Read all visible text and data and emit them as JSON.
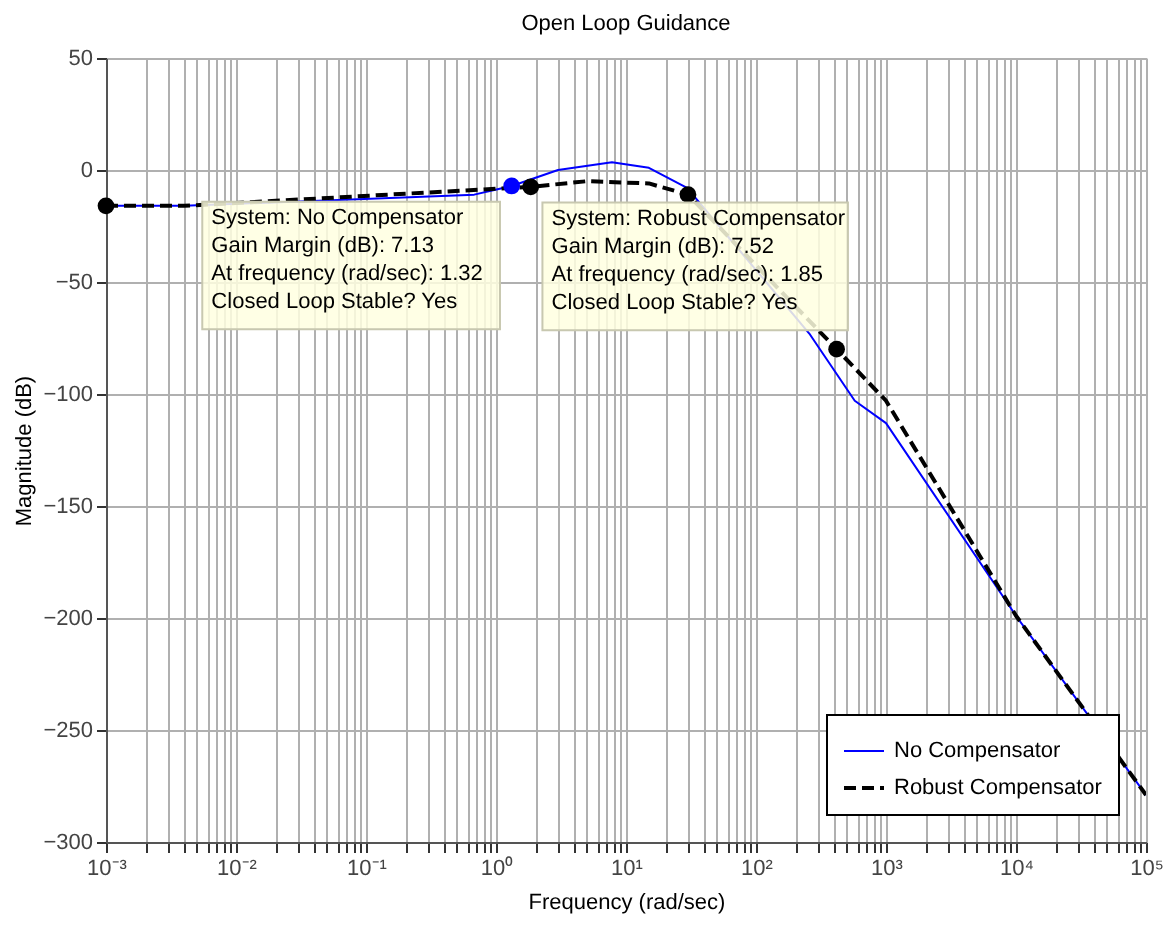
{
  "chart_data": {
    "type": "line",
    "title": "Open Loop Guidance",
    "xlabel": "Frequency  (rad/sec)",
    "ylabel": "Magnitude (dB)",
    "log": "x",
    "grid": true,
    "legend": "bottom right",
    "xlim": [
      0.001,
      100000
    ],
    "ylim": [
      -300,
      50
    ],
    "yticks": [
      -300,
      -250,
      -200,
      -150,
      -100,
      -50,
      0,
      50
    ],
    "xticks": [
      {
        "value": 0.001,
        "label": "10⁻³"
      },
      {
        "value": 0.002,
        "label": null
      },
      {
        "value": 0.003,
        "label": null
      },
      {
        "value": 0.004,
        "label": null
      },
      {
        "value": 0.005,
        "label": null
      },
      {
        "value": 0.006,
        "label": null
      },
      {
        "value": 0.007,
        "label": null
      },
      {
        "value": 0.008,
        "label": null
      },
      {
        "value": 0.009,
        "label": null
      },
      {
        "value": 0.01,
        "label": "10⁻²"
      },
      {
        "value": 0.02,
        "label": null
      },
      {
        "value": 0.03,
        "label": null
      },
      {
        "value": 0.04,
        "label": null
      },
      {
        "value": 0.05,
        "label": null
      },
      {
        "value": 0.06,
        "label": null
      },
      {
        "value": 0.07,
        "label": null
      },
      {
        "value": 0.08,
        "label": null
      },
      {
        "value": 0.09,
        "label": null
      },
      {
        "value": 0.1,
        "label": "10⁻¹"
      },
      {
        "value": 0.2,
        "label": null
      },
      {
        "value": 0.3,
        "label": null
      },
      {
        "value": 0.4,
        "label": null
      },
      {
        "value": 0.5,
        "label": null
      },
      {
        "value": 0.6,
        "label": null
      },
      {
        "value": 0.7,
        "label": null
      },
      {
        "value": 0.8,
        "label": null
      },
      {
        "value": 0.9,
        "label": null
      },
      {
        "value": 1,
        "label": "10⁰"
      },
      {
        "value": 2,
        "label": null
      },
      {
        "value": 3,
        "label": null
      },
      {
        "value": 4,
        "label": null
      },
      {
        "value": 5,
        "label": null
      },
      {
        "value": 6,
        "label": null
      },
      {
        "value": 7,
        "label": null
      },
      {
        "value": 8,
        "label": null
      },
      {
        "value": 9,
        "label": null
      },
      {
        "value": 10,
        "label": "10¹"
      },
      {
        "value": 20,
        "label": null
      },
      {
        "value": 30,
        "label": null
      },
      {
        "value": 40,
        "label": null
      },
      {
        "value": 50,
        "label": null
      },
      {
        "value": 60,
        "label": null
      },
      {
        "value": 70,
        "label": null
      },
      {
        "value": 80,
        "label": null
      },
      {
        "value": 90,
        "label": null
      },
      {
        "value": 100,
        "label": "10²"
      },
      {
        "value": 200,
        "label": null
      },
      {
        "value": 300,
        "label": null
      },
      {
        "value": 400,
        "label": null
      },
      {
        "value": 500,
        "label": null
      },
      {
        "value": 600,
        "label": null
      },
      {
        "value": 700,
        "label": null
      },
      {
        "value": 800,
        "label": null
      },
      {
        "value": 900,
        "label": null
      },
      {
        "value": 1000,
        "label": "10³"
      },
      {
        "value": 2000,
        "label": null
      },
      {
        "value": 3000,
        "label": null
      },
      {
        "value": 4000,
        "label": null
      },
      {
        "value": 5000,
        "label": null
      },
      {
        "value": 6000,
        "label": null
      },
      {
        "value": 7000,
        "label": null
      },
      {
        "value": 8000,
        "label": null
      },
      {
        "value": 9000,
        "label": null
      },
      {
        "value": 10000,
        "label": "10⁴"
      },
      {
        "value": 20000,
        "label": null
      },
      {
        "value": 30000,
        "label": null
      },
      {
        "value": 40000,
        "label": null
      },
      {
        "value": 50000,
        "label": null
      },
      {
        "value": 60000,
        "label": null
      },
      {
        "value": 70000,
        "label": null
      },
      {
        "value": 80000,
        "label": null
      },
      {
        "value": 90000,
        "label": null
      },
      {
        "value": 100000,
        "label": "10⁵"
      }
    ],
    "series": [
      {
        "name": "No Compensator",
        "color": "#0000ff",
        "line_style": "solid",
        "x": [
          0.001,
          0.004,
          0.68,
          1.32,
          3,
          7.8,
          15,
          29.5,
          257,
          575,
          1000,
          10000,
          100000
        ],
        "values": [
          -16,
          -16,
          -11,
          -7.13,
          0,
          3.5,
          1,
          -8,
          -73,
          -103,
          -113,
          -199,
          -279
        ]
      },
      {
        "name": "Robust Compensator",
        "color": "#000000",
        "line_style": "dashed",
        "x": [
          0.001,
          0.004,
          1.85,
          5,
          15,
          30,
          417,
          1000,
          10000,
          100000
        ],
        "values": [
          -16,
          -16,
          -7.52,
          -5,
          -6,
          -11,
          -80,
          -103,
          -199,
          -279
        ]
      },
      {
        "type": "scatter",
        "marker": "circle",
        "color": "#000000",
        "x": [
          0.001,
          1.85,
          30,
          417
        ],
        "values": [
          -16,
          -7.52,
          -11,
          -80
        ]
      },
      {
        "type": "scatter",
        "marker": "circle",
        "color": "#0000ff",
        "x": [
          1.32
        ],
        "values": [
          -7.13
        ]
      }
    ],
    "annotations": [
      {
        "text": "System: No Compensator\nGain Margin (dB): 7.13\nAt frequency (rad/sec): 1.32\nClosed Loop Stable? Yes",
        "x": 1.32,
        "y": -7.13
      },
      {
        "text": "System: Robust Compensator\nGain Margin (dB): 7.52\nAt frequency (rad/sec): 1.85\nClosed Loop Stable? Yes",
        "x": 1.85,
        "y": -7.52
      }
    ]
  }
}
